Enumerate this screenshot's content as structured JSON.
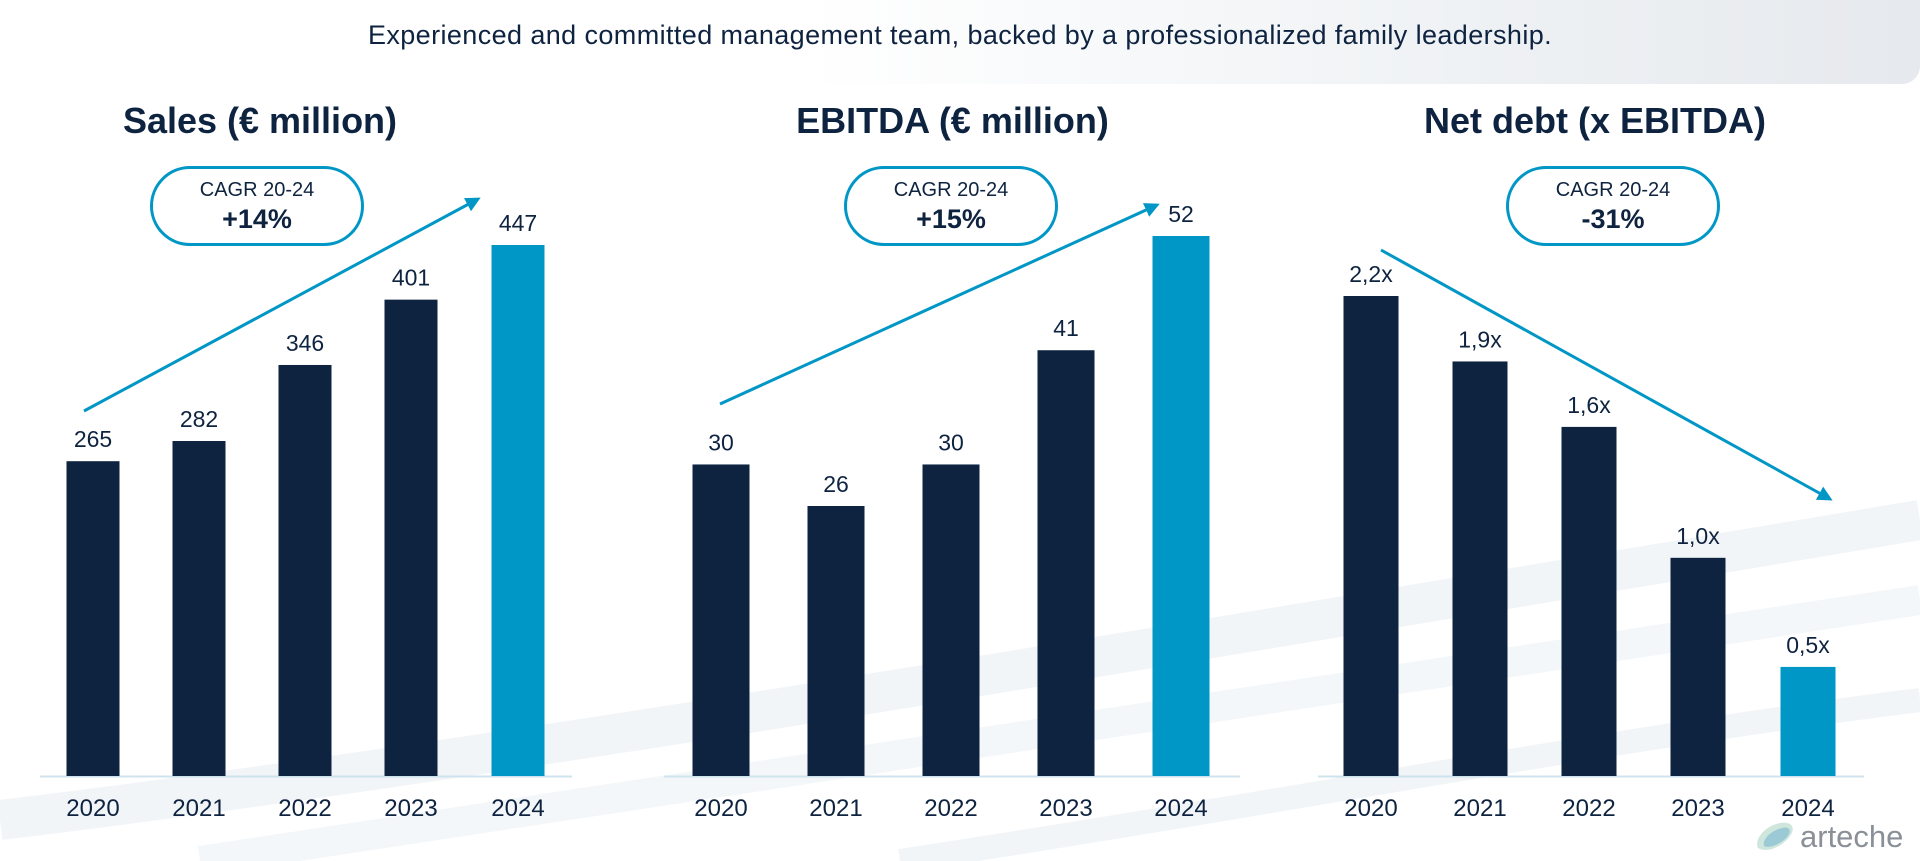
{
  "header": {
    "subtitle": "Experienced and committed management team, backed by a professionalized family leadership."
  },
  "colors": {
    "navy": "#0e2340",
    "accent": "#0096c6",
    "axis": "#cfe3ee"
  },
  "logo": {
    "text": "arteche"
  },
  "chart_data": [
    {
      "type": "bar",
      "title": "Sales (€ million)",
      "categories": [
        "2020",
        "2021",
        "2022",
        "2023",
        "2024"
      ],
      "values": [
        265,
        282,
        346,
        401,
        447
      ],
      "labels": [
        "265",
        "282",
        "346",
        "401",
        "447"
      ],
      "highlight_last": true,
      "trend": "up",
      "cagr": {
        "label": "CAGR 20-24",
        "value": "+14%"
      },
      "ylim": [
        0,
        447
      ]
    },
    {
      "type": "bar",
      "title": "EBITDA (€ million)",
      "categories": [
        "2020",
        "2021",
        "2022",
        "2023",
        "2024"
      ],
      "values": [
        30,
        26,
        30,
        41,
        52
      ],
      "labels": [
        "30",
        "26",
        "30",
        "41",
        "52"
      ],
      "highlight_last": true,
      "trend": "up",
      "cagr": {
        "label": "CAGR 20-24",
        "value": "+15%"
      },
      "ylim": [
        0,
        52
      ]
    },
    {
      "type": "bar",
      "title": "Net debt (x EBITDA)",
      "categories": [
        "2020",
        "2021",
        "2022",
        "2023",
        "2024"
      ],
      "values": [
        2.2,
        1.9,
        1.6,
        1.0,
        0.5
      ],
      "labels": [
        "2,2x",
        "1,9x",
        "1,6x",
        "1,0x",
        "0,5x"
      ],
      "highlight_last": true,
      "trend": "down",
      "cagr": {
        "label": "CAGR 20-24",
        "value": "-31%"
      },
      "ylim": [
        0,
        2.2
      ]
    }
  ]
}
